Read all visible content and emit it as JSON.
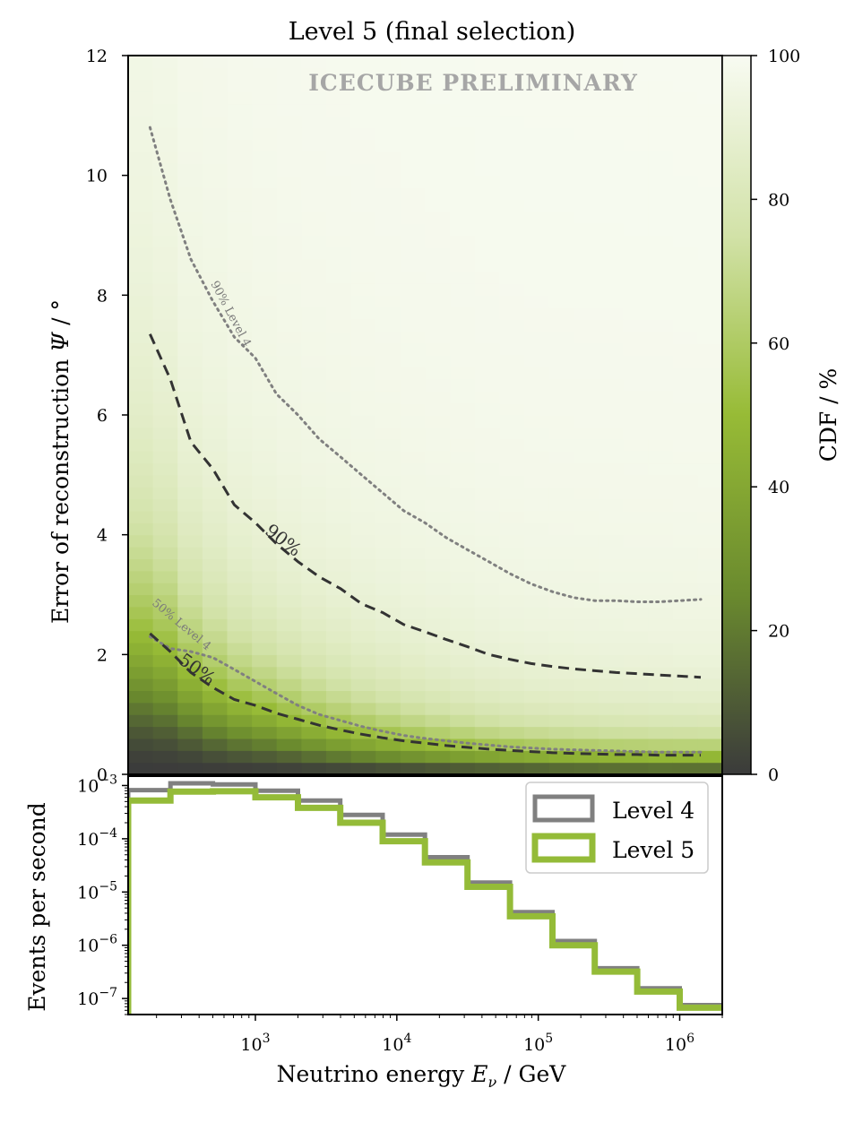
{
  "chart_data": [
    {
      "type": "heatmap",
      "title": "Level 5 (final selection)",
      "watermark": "ICECUBE PRELIMINARY",
      "xlabel": "Neutrino energy  E_ν / GeV",
      "ylabel": "Error of reconstruction  Ψ / °",
      "xscale": "log",
      "xlim": [
        126,
        2000000
      ],
      "ylim": [
        0,
        12
      ],
      "yticks": [
        0,
        2,
        4,
        6,
        8,
        10,
        12
      ],
      "ytick_labels": [
        "0",
        "2",
        "4",
        "6",
        "8",
        "10",
        "12"
      ],
      "colorbar": {
        "label": "CDF / %",
        "range": [
          0,
          100
        ],
        "ticks": [
          0,
          20,
          40,
          60,
          80,
          100
        ],
        "tick_labels": [
          "0",
          "20",
          "40",
          "60",
          "80",
          "100"
        ],
        "colors": [
          "#3b3b3b",
          "#6a8a2e",
          "#97bb36",
          "#d2e2a8",
          "#f8fbf2"
        ]
      },
      "series": [
        {
          "name": "90% Level 4",
          "label": "90% Level 4",
          "style": "dotted",
          "color": "#808080",
          "x": [
            180,
            250,
            350,
            500,
            710,
            1000,
            1410,
            2000,
            2820,
            4000,
            5620,
            7940,
            11200,
            15800,
            22400,
            31600,
            44700,
            63100,
            89100,
            126000,
            178000,
            251000,
            355000,
            501000,
            708000,
            1000000,
            1410000
          ],
          "y": [
            10.8,
            9.6,
            8.6,
            7.9,
            7.3,
            6.95,
            6.35,
            6.0,
            5.6,
            5.3,
            5.0,
            4.7,
            4.4,
            4.2,
            3.95,
            3.75,
            3.55,
            3.35,
            3.18,
            3.05,
            2.95,
            2.9,
            2.9,
            2.88,
            2.88,
            2.9,
            2.92
          ]
        },
        {
          "name": "90% Level 5",
          "label": "90%",
          "style": "dashed",
          "color": "#333333",
          "x": [
            180,
            250,
            350,
            500,
            710,
            1000,
            1410,
            2000,
            2820,
            4000,
            5620,
            7940,
            11200,
            15800,
            22400,
            31600,
            44700,
            63100,
            89100,
            126000,
            178000,
            251000,
            355000,
            501000,
            708000,
            1000000,
            1410000
          ],
          "y": [
            7.35,
            6.6,
            5.55,
            5.1,
            4.5,
            4.2,
            3.85,
            3.55,
            3.3,
            3.1,
            2.85,
            2.7,
            2.5,
            2.38,
            2.25,
            2.13,
            2.0,
            1.92,
            1.85,
            1.8,
            1.76,
            1.73,
            1.7,
            1.68,
            1.66,
            1.64,
            1.62
          ]
        },
        {
          "name": "50% Level 4",
          "label": "50% Level 4",
          "style": "dotted",
          "color": "#808080",
          "x": [
            180,
            250,
            350,
            500,
            710,
            1000,
            1410,
            2000,
            2820,
            4000,
            5620,
            7940,
            11200,
            15800,
            22400,
            31600,
            44700,
            63100,
            89100,
            126000,
            178000,
            251000,
            355000,
            501000,
            708000,
            1000000,
            1410000
          ],
          "y": [
            2.3,
            2.1,
            2.05,
            1.95,
            1.75,
            1.55,
            1.35,
            1.15,
            1.0,
            0.9,
            0.8,
            0.72,
            0.65,
            0.6,
            0.56,
            0.52,
            0.49,
            0.46,
            0.44,
            0.42,
            0.41,
            0.4,
            0.39,
            0.38,
            0.37,
            0.37,
            0.37
          ]
        },
        {
          "name": "50% Level 5",
          "label": "50%",
          "style": "dashed",
          "color": "#333333",
          "x": [
            180,
            250,
            350,
            500,
            710,
            1000,
            1410,
            2000,
            2820,
            4000,
            5620,
            7940,
            11200,
            15800,
            22400,
            31600,
            44700,
            63100,
            89100,
            126000,
            178000,
            251000,
            355000,
            501000,
            708000,
            1000000,
            1410000
          ],
          "y": [
            2.35,
            2.05,
            1.7,
            1.45,
            1.25,
            1.15,
            1.02,
            0.92,
            0.82,
            0.74,
            0.67,
            0.61,
            0.56,
            0.52,
            0.48,
            0.45,
            0.42,
            0.4,
            0.38,
            0.36,
            0.35,
            0.34,
            0.33,
            0.33,
            0.32,
            0.32,
            0.32
          ]
        }
      ]
    },
    {
      "type": "line",
      "drawstyle": "steps",
      "xlabel": "Neutrino energy  E_ν / GeV",
      "ylabel": "Events per second",
      "xscale": "log",
      "yscale": "log",
      "xlim": [
        126,
        2000000
      ],
      "ylim": [
        5e-08,
        0.0015
      ],
      "yticks": [
        1e-07,
        1e-06,
        1e-05,
        0.0001,
        0.001
      ],
      "ytick_labels": [
        "10-7",
        "10-6",
        "10-5",
        "10-4",
        "10-3"
      ],
      "xticks": [
        1000,
        10000,
        100000,
        1000000
      ],
      "xtick_labels": [
        "103",
        "104",
        "105",
        "106"
      ],
      "legend": {
        "placement": "top-right",
        "entries": [
          "Level 4",
          "Level 5"
        ]
      },
      "bin_edges": [
        126,
        251,
        501,
        1000,
        2000,
        3980,
        7940,
        15800,
        31600,
        63100,
        126000,
        251000,
        501000,
        1000000,
        2000000
      ],
      "series": [
        {
          "name": "Level 4",
          "color": "#808080",
          "values": [
            0.00082,
            0.0011,
            0.00105,
            0.0008,
            0.00052,
            0.00028,
            0.00012,
            4.5e-05,
            1.5e-05,
            4.2e-06,
            1.2e-06,
            3.7e-07,
            1.55e-07,
            7.5e-08
          ]
        },
        {
          "name": "Level 5",
          "color": "#94bb38",
          "values": [
            0.00052,
            0.00077,
            0.00078,
            0.0006,
            0.00038,
            0.0002,
            9e-05,
            3.6e-05,
            1.25e-05,
            3.5e-06,
            1e-06,
            3.2e-07,
            1.35e-07,
            6.7e-08
          ]
        }
      ]
    }
  ]
}
